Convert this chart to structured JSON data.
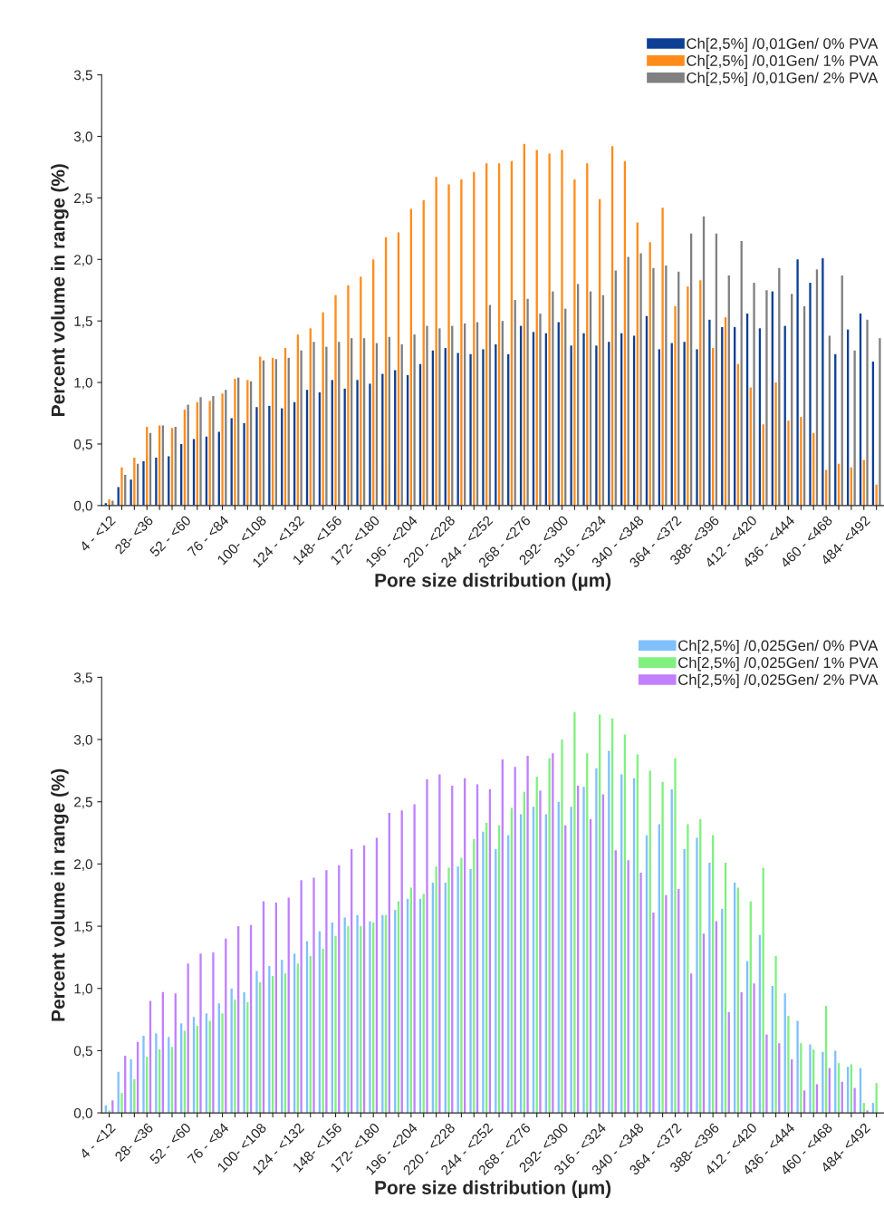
{
  "chart_data": [
    {
      "type": "bar",
      "xlabel": "Pore size distribution (µm)",
      "ylabel": "Percent volume in range (%)",
      "categories": [
        "4 - <12",
        null,
        null,
        "28- <36",
        null,
        null,
        "52 - <60",
        null,
        null,
        "76 - <84",
        null,
        null,
        "100- <108",
        null,
        null,
        "124 - <132",
        null,
        null,
        "148- <156",
        null,
        null,
        "172- <180",
        null,
        null,
        "196 - <204",
        null,
        null,
        "220 - <228",
        null,
        null,
        "244 - <252",
        null,
        null,
        "268 - <276",
        null,
        null,
        "292- <300",
        null,
        null,
        "316 - <324",
        null,
        null,
        "340 - <348",
        null,
        null,
        "364 - <372",
        null,
        null,
        "388- <396",
        null,
        null,
        "412 - <420",
        null,
        null,
        "436 - <444",
        null,
        null,
        "460 - <468",
        null,
        null,
        "484- <492",
        null
      ],
      "ylim": [
        0,
        3.5
      ],
      "yticks": [
        {
          "value": 0,
          "label": "0,0"
        },
        {
          "value": 0.5,
          "label": "0,5"
        },
        {
          "value": 1,
          "label": "1,0"
        },
        {
          "value": 1.5,
          "label": "1,5"
        },
        {
          "value": 2,
          "label": "2,0"
        },
        {
          "value": 2.5,
          "label": "2,5"
        },
        {
          "value": 3,
          "label": "3,0"
        },
        {
          "value": 3.5,
          "label": "3,5"
        }
      ],
      "legend": "top right",
      "grid": false,
      "series": [
        {
          "name": "Ch[2,5%] /0,01Gen/ 0% PVA",
          "color": "#0d3f94",
          "values": [
            0.02,
            0.15,
            0.21,
            0.36,
            0.39,
            0.4,
            0.5,
            0.54,
            0.56,
            0.6,
            0.71,
            0.67,
            0.8,
            0.81,
            0.79,
            0.84,
            0.94,
            0.92,
            1.02,
            0.95,
            1.02,
            0.99,
            1.07,
            1.1,
            1.06,
            1.15,
            1.26,
            1.28,
            1.24,
            1.23,
            1.27,
            1.31,
            1.23,
            1.46,
            1.41,
            1.4,
            1.49,
            1.3,
            1.4,
            1.3,
            1.33,
            1.4,
            1.38,
            1.54,
            1.27,
            1.32,
            1.33,
            1.27,
            1.51,
            1.45,
            1.45,
            1.56,
            1.44,
            1.74,
            1.46,
            2.0,
            1.81,
            2.01,
            1.23,
            1.43,
            1.56,
            1.17
          ]
        },
        {
          "name": "Ch[2,5%] /0,01Gen/ 1% PVA",
          "color": "#ff8c1a",
          "values": [
            0.05,
            0.31,
            0.39,
            0.64,
            0.65,
            0.63,
            0.78,
            0.84,
            0.85,
            0.91,
            1.03,
            1.02,
            1.21,
            1.2,
            1.28,
            1.39,
            1.44,
            1.57,
            1.71,
            1.79,
            1.86,
            2.0,
            2.18,
            2.22,
            2.41,
            2.48,
            2.67,
            2.61,
            2.65,
            2.71,
            2.78,
            2.78,
            2.8,
            2.94,
            2.89,
            2.86,
            2.89,
            2.65,
            2.78,
            2.49,
            2.92,
            2.8,
            2.3,
            2.14,
            2.42,
            1.62,
            1.78,
            1.83,
            1.28,
            1.53,
            1.15,
            0.96,
            0.66,
            1.0,
            0.69,
            0.72,
            0.59,
            0.29,
            0.34,
            0.31,
            0.37,
            0.17
          ]
        },
        {
          "name": "Ch[2,5%] /0,01Gen/ 2% PVA",
          "color": "#808080",
          "values": [
            0.04,
            0.25,
            0.34,
            0.59,
            0.65,
            0.64,
            0.82,
            0.88,
            0.89,
            0.94,
            1.04,
            1.01,
            1.18,
            1.19,
            1.2,
            1.26,
            1.33,
            1.29,
            1.33,
            1.36,
            1.36,
            1.32,
            1.37,
            1.31,
            1.39,
            1.46,
            1.44,
            1.46,
            1.48,
            1.49,
            1.63,
            1.5,
            1.67,
            1.68,
            1.56,
            1.74,
            1.6,
            1.8,
            1.74,
            1.71,
            1.91,
            2.02,
            2.05,
            1.93,
            1.95,
            1.9,
            2.21,
            2.35,
            2.21,
            1.87,
            2.15,
            1.81,
            1.75,
            1.93,
            1.72,
            1.62,
            1.92,
            1.38,
            1.87,
            1.26,
            1.51,
            1.36
          ]
        }
      ]
    },
    {
      "type": "bar",
      "xlabel": "Pore size distribution (µm)",
      "ylabel": "Percent volume in range (%)",
      "categories": [
        "4 - <12",
        null,
        null,
        "28- <36",
        null,
        null,
        "52 - <60",
        null,
        null,
        "76 - <84",
        null,
        null,
        "100- <108",
        null,
        null,
        "124 - <132",
        null,
        null,
        "148- <156",
        null,
        null,
        "172- <180",
        null,
        null,
        "196 - <204",
        null,
        null,
        "220 - <228",
        null,
        null,
        "244 - <252",
        null,
        null,
        "268 - <276",
        null,
        null,
        "292- <300",
        null,
        null,
        "316 - <324",
        null,
        null,
        "340 - <348",
        null,
        null,
        "364 - <372",
        null,
        null,
        "388- <396",
        null,
        null,
        "412 - <420",
        null,
        null,
        "436 - <444",
        null,
        null,
        "460 - <468",
        null,
        null,
        "484- <492",
        null
      ],
      "ylim": [
        0,
        3.5
      ],
      "yticks": [
        {
          "value": 0,
          "label": "0,0"
        },
        {
          "value": 0.5,
          "label": "0,5"
        },
        {
          "value": 1,
          "label": "1,0"
        },
        {
          "value": 1.5,
          "label": "1,5"
        },
        {
          "value": 2,
          "label": "2,0"
        },
        {
          "value": 2.5,
          "label": "2,5"
        },
        {
          "value": 3,
          "label": "3,0"
        },
        {
          "value": 3.5,
          "label": "3,5"
        }
      ],
      "legend": "top right",
      "grid": false,
      "series": [
        {
          "name": "Ch[2,5%] /0,025Gen/ 0% PVA",
          "color": "#80c0ff",
          "values": [
            0.06,
            0.33,
            0.43,
            0.62,
            0.64,
            0.61,
            0.72,
            0.77,
            0.8,
            0.88,
            1.0,
            0.97,
            1.14,
            1.18,
            1.23,
            1.28,
            1.38,
            1.46,
            1.53,
            1.57,
            1.59,
            1.54,
            1.59,
            1.63,
            1.72,
            1.72,
            1.85,
            1.85,
            1.98,
            1.96,
            2.26,
            2.12,
            2.23,
            2.4,
            2.46,
            2.4,
            2.5,
            2.46,
            2.62,
            2.77,
            2.91,
            2.72,
            2.69,
            2.23,
            2.32,
            2.6,
            2.12,
            2.21,
            2.01,
            1.64,
            1.85,
            1.22,
            1.43,
            1.02,
            0.96,
            0.74,
            0.55,
            0.49,
            0.5,
            0.37,
            0.36,
            0.08
          ]
        },
        {
          "name": "Ch[2,5%] /0,025Gen/ 1% PVA",
          "color": "#80f080",
          "values": [
            0.02,
            0.16,
            0.27,
            0.45,
            0.51,
            0.53,
            0.66,
            0.7,
            0.74,
            0.8,
            0.91,
            0.89,
            1.05,
            1.1,
            1.12,
            1.2,
            1.26,
            1.32,
            1.42,
            1.5,
            1.5,
            1.53,
            1.59,
            1.7,
            1.81,
            1.76,
            1.98,
            1.97,
            2.05,
            2.2,
            2.33,
            2.31,
            2.45,
            2.58,
            2.7,
            2.85,
            3.0,
            3.22,
            2.89,
            3.2,
            3.17,
            3.04,
            2.88,
            2.75,
            2.66,
            2.85,
            2.32,
            2.36,
            2.23,
            2.01,
            1.81,
            1.7,
            1.97,
            1.26,
            0.78,
            0.56,
            0.51,
            0.86,
            0.4,
            0.39,
            0.08,
            0.24
          ]
        },
        {
          "name": "Ch[2,5%] /0,025Gen/ 2% PVA",
          "color": "#c080ff",
          "values": [
            0.1,
            0.46,
            0.57,
            0.9,
            0.97,
            0.96,
            1.2,
            1.28,
            1.29,
            1.4,
            1.5,
            1.51,
            1.7,
            1.69,
            1.73,
            1.87,
            1.89,
            1.95,
            1.99,
            2.12,
            2.15,
            2.21,
            2.41,
            2.43,
            2.48,
            2.68,
            2.72,
            2.63,
            2.69,
            2.64,
            2.6,
            2.84,
            2.78,
            2.87,
            2.59,
            2.89,
            2.31,
            2.63,
            2.36,
            2.56,
            2.11,
            2.03,
            1.93,
            1.61,
            1.75,
            1.8,
            1.12,
            1.44,
            1.54,
            0.81,
            0.97,
            1.04,
            0.63,
            0.56,
            0.43,
            0.18,
            0.23,
            0.36,
            0.25,
            0.2,
            0.02,
            null
          ]
        }
      ]
    }
  ]
}
